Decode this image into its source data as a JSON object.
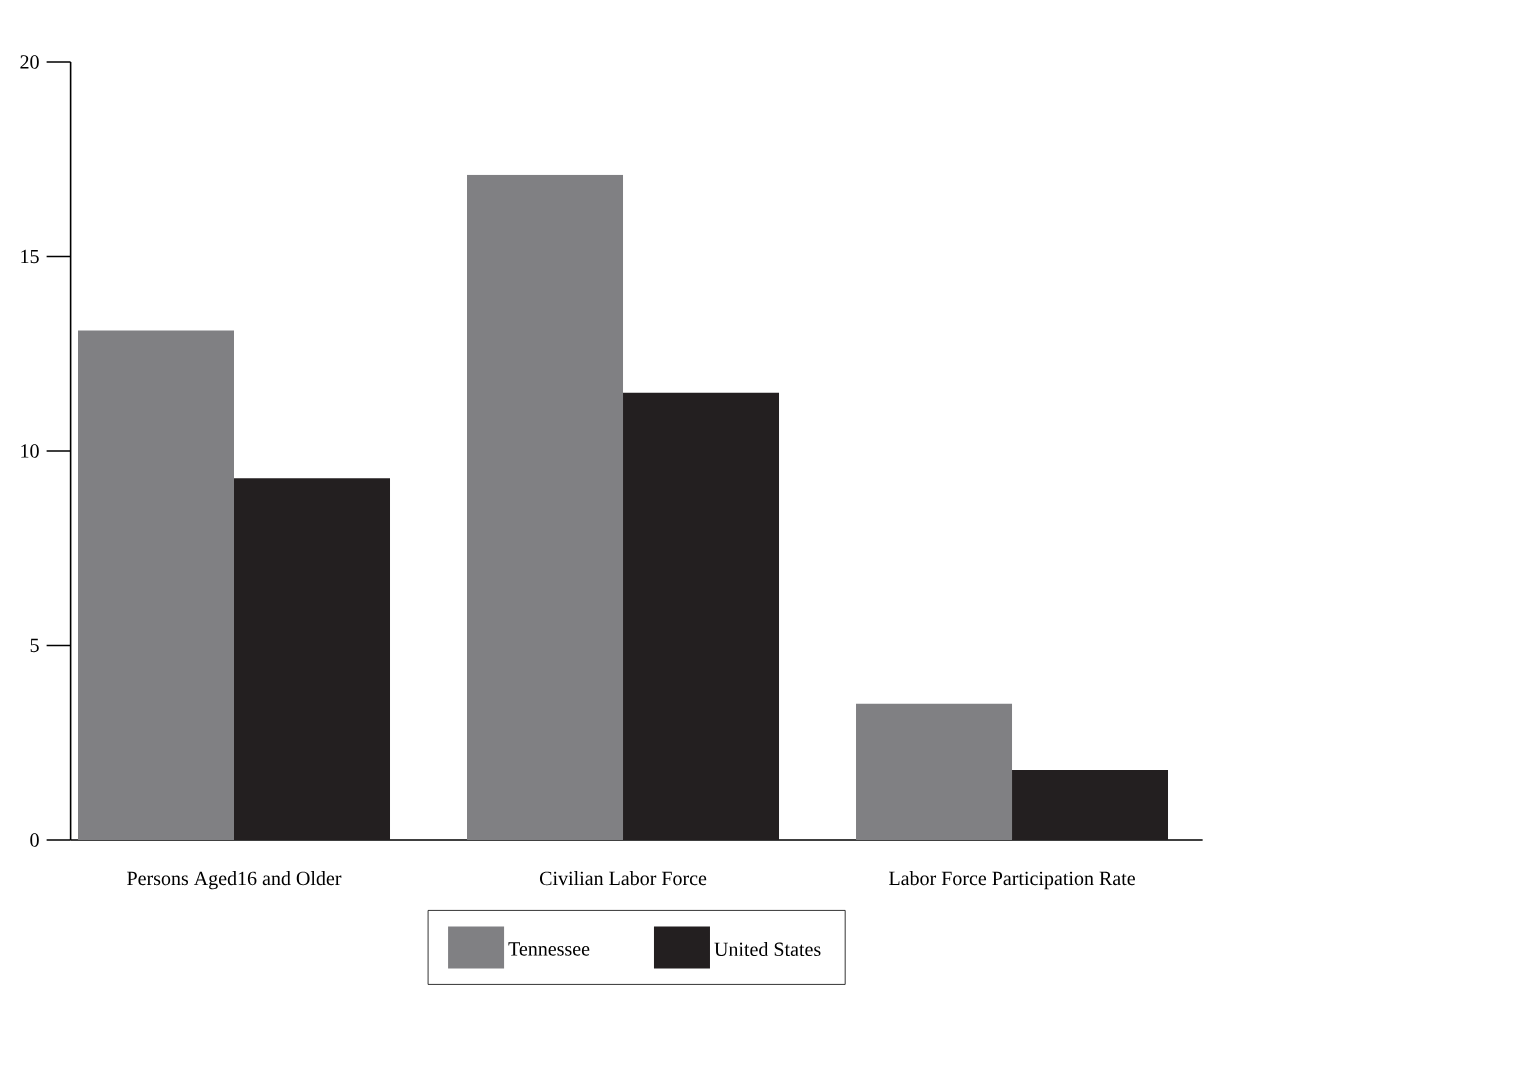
{
  "chart_data": {
    "type": "bar",
    "categories": [
      "Persons Aged16 and Older",
      "Civilian Labor Force",
      "Labor Force Participation Rate"
    ],
    "series": [
      {
        "name": "Tennessee",
        "color": "#808083",
        "values": [
          13.1,
          17.1,
          3.5
        ]
      },
      {
        "name": "United States",
        "color": "#231f20",
        "values": [
          9.3,
          11.5,
          1.8
        ]
      }
    ],
    "ylim": [
      0,
      20
    ],
    "yticks": [
      0,
      5,
      10,
      15,
      20
    ],
    "legend": "bottom"
  }
}
